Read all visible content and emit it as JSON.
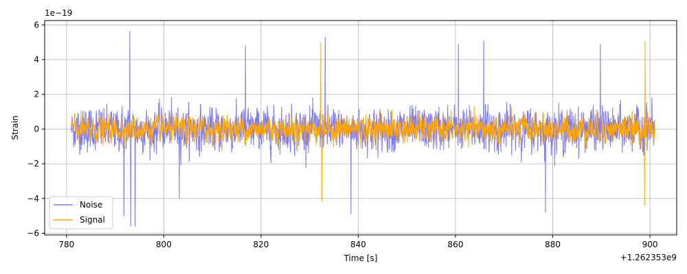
{
  "chart_data": {
    "type": "line",
    "title": "",
    "xlabel": "Time [s]",
    "ylabel": "Strain",
    "x_offset_label": "+1.262353e9",
    "y_scale_label": "1e−19",
    "xlim": [
      775.5,
      905.5
    ],
    "ylim": [
      -6.1,
      6.25
    ],
    "x_ticks": [
      780,
      800,
      820,
      840,
      860,
      880,
      900
    ],
    "x_tick_labels": [
      "780",
      "800",
      "820",
      "840",
      "860",
      "880",
      "900"
    ],
    "y_ticks": [
      -6,
      -4,
      -2,
      0,
      2,
      4,
      6
    ],
    "y_tick_labels": [
      "−6",
      "−4",
      "−2",
      "0",
      "2",
      "4",
      "6"
    ],
    "grid": true,
    "legend_position": "lower-left",
    "series": [
      {
        "name": "Noise",
        "color": "#7b7bff",
        "x_range": [
          781,
          901
        ],
        "amplitude_rms": 0.85,
        "peaks": [
          {
            "x": 793.0,
            "y": 5.65
          },
          {
            "x": 793.2,
            "y": -5.6
          },
          {
            "x": 794.1,
            "y": -5.6
          },
          {
            "x": 791.8,
            "y": -5.0
          },
          {
            "x": 833.2,
            "y": 5.3
          },
          {
            "x": 838.5,
            "y": -4.9
          },
          {
            "x": 865.8,
            "y": 5.1
          },
          {
            "x": 889.8,
            "y": 4.9
          },
          {
            "x": 878.5,
            "y": -4.8
          },
          {
            "x": 816.8,
            "y": 4.8
          },
          {
            "x": 803.2,
            "y": -4.0
          },
          {
            "x": 860.6,
            "y": 4.9
          }
        ]
      },
      {
        "name": "Signal",
        "color": "#ffa500",
        "x_range": [
          781,
          901
        ],
        "amplitude_rms": 0.55,
        "peaks": [
          {
            "x": 832.3,
            "y": 5.0
          },
          {
            "x": 832.5,
            "y": -4.15
          },
          {
            "x": 899.0,
            "y": 5.05
          },
          {
            "x": 898.9,
            "y": -4.4
          }
        ]
      }
    ]
  }
}
